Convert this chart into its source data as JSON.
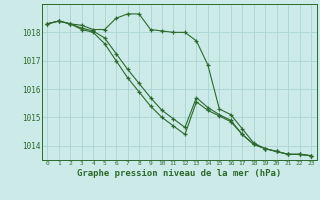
{
  "title": "Graphe pression niveau de la mer (hPa)",
  "background_color": "#cceae8",
  "grid_color": "#aad4d0",
  "line_color": "#2d6a2d",
  "x": [
    0,
    1,
    2,
    3,
    4,
    5,
    6,
    7,
    8,
    9,
    10,
    11,
    12,
    13,
    14,
    15,
    16,
    17,
    18,
    19,
    20,
    21,
    22,
    23
  ],
  "line1": [
    1018.3,
    1018.4,
    1018.3,
    1018.25,
    1018.1,
    1018.1,
    1018.5,
    1018.65,
    1018.65,
    1018.1,
    1018.05,
    1018.0,
    1018.0,
    1017.7,
    1016.85,
    1015.3,
    1015.1,
    1014.6,
    1014.1,
    1013.9,
    1013.8,
    1013.7,
    1013.7,
    1013.65
  ],
  "line2": [
    1018.3,
    1018.4,
    1018.3,
    1018.1,
    1018.0,
    1017.6,
    1017.0,
    1016.4,
    1015.9,
    1015.4,
    1015.0,
    1014.7,
    1014.4,
    1015.55,
    1015.25,
    1015.05,
    1014.85,
    1014.4,
    1014.05,
    1013.9,
    1013.8,
    1013.7,
    1013.7,
    1013.65
  ],
  "line3": [
    1018.3,
    1018.4,
    1018.3,
    1018.15,
    1018.05,
    1017.8,
    1017.25,
    1016.7,
    1016.2,
    1015.7,
    1015.25,
    1014.95,
    1014.65,
    1015.7,
    1015.35,
    1015.1,
    1014.9,
    1014.4,
    1014.05,
    1013.9,
    1013.8,
    1013.7,
    1013.7,
    1013.65
  ],
  "ylim": [
    1013.5,
    1019.0
  ],
  "yticks": [
    1014,
    1015,
    1016,
    1017,
    1018
  ],
  "xlim": [
    -0.5,
    23.5
  ]
}
